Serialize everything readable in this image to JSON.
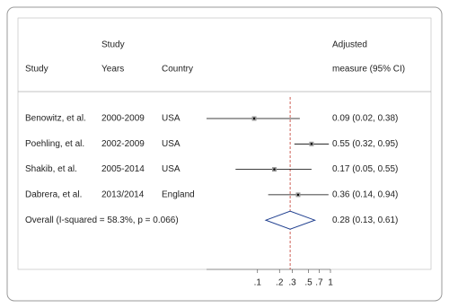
{
  "chart_data": {
    "type": "forest",
    "headers": {
      "study": "Study",
      "years_top": "Study",
      "years": "Years",
      "country": "Country",
      "measure_top": "Adjusted",
      "measure": "measure (95% CI)"
    },
    "categories": [
      "Benowitz, et al.",
      "Poehling, et al.",
      "Shakib, et al.",
      "Dabrera, et al."
    ],
    "years": [
      "2000-2009",
      "2002-2009",
      "2005-2014",
      "2013/2014"
    ],
    "country": [
      "USA",
      "USA",
      "USA",
      "England"
    ],
    "values": [
      0.09,
      0.55,
      0.17,
      0.36
    ],
    "lower": [
      0.02,
      0.32,
      0.05,
      0.14
    ],
    "upper": [
      0.38,
      0.95,
      0.55,
      0.94
    ],
    "value_labels": [
      "0.09 (0.02, 0.38)",
      "0.55 (0.32, 0.95)",
      "0.17 (0.05, 0.55)",
      "0.36 (0.14, 0.94)"
    ],
    "overall": {
      "label": "Overall  (I-squared = 58.3%, p = 0.066)",
      "value": 0.28,
      "lower": 0.13,
      "upper": 0.61,
      "value_label": "0.28 (0.13, 0.61)",
      "color": "#1f3f8f",
      "line_color": "#c0392b"
    },
    "color": "#000000",
    "log_x": true,
    "xlim": [
      0.02,
      1
    ],
    "xticks": [
      {
        "value": 0.1,
        "label": ".1"
      },
      {
        "value": 0.2,
        "label": ".2"
      },
      {
        "value": 0.3,
        "label": ".3"
      },
      {
        "value": 0.5,
        "label": ".5"
      },
      {
        "value": 0.7,
        "label": ".7"
      },
      1
    ]
  }
}
